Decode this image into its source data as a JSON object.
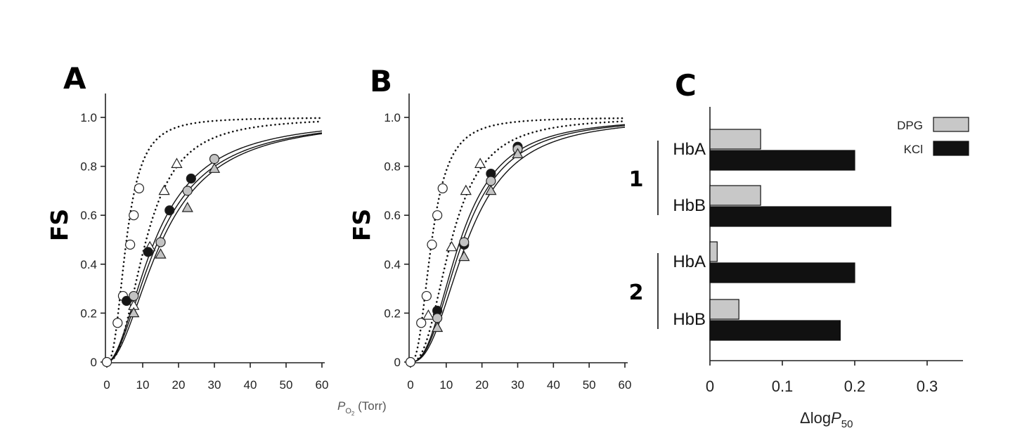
{
  "colors": {
    "open": "#ffffff",
    "grey": "#c3c3c3",
    "black": "#151515",
    "DPG": "#c8c8c8",
    "KCl": "#111111"
  },
  "shared": {
    "xlabel_main": "P",
    "xlabel_sub": "O",
    "xlabel_sub2": "2",
    "xlabel_unit": " (Torr)"
  },
  "chart_data": [
    {
      "type": "line",
      "panel": "A",
      "ylabel": "FS",
      "xlim": [
        0,
        60
      ],
      "ylim": [
        0,
        1.0
      ],
      "xticks": [
        "0",
        "10",
        "20",
        "30",
        "40",
        "50",
        "60"
      ],
      "yticks": [
        "0",
        "0.2",
        "0.4",
        "0.6",
        "0.8",
        "1.0"
      ],
      "curves": [
        {
          "style": "dotted",
          "p50": 5.5,
          "n": 2.5
        },
        {
          "style": "dotted",
          "p50": 11,
          "n": 2.4
        },
        {
          "style": "solid",
          "p50": 13.5,
          "n": 1.9
        },
        {
          "style": "solid",
          "p50": 14.5,
          "n": 1.9
        },
        {
          "style": "solid",
          "p50": 15.5,
          "n": 1.95
        }
      ],
      "series": [
        {
          "marker": "circle",
          "fill": "open",
          "points": [
            [
              0,
              0
            ],
            [
              3,
              0.16
            ],
            [
              4.5,
              0.27
            ],
            [
              6.5,
              0.48
            ],
            [
              7.5,
              0.6
            ],
            [
              9,
              0.71
            ]
          ]
        },
        {
          "marker": "triangle",
          "fill": "open",
          "points": [
            [
              7.5,
              0.23
            ],
            [
              12,
              0.47
            ],
            [
              16,
              0.7
            ],
            [
              19.5,
              0.81
            ]
          ]
        },
        {
          "marker": "circle",
          "fill": "black",
          "points": [
            [
              5.5,
              0.25
            ],
            [
              11.5,
              0.45
            ],
            [
              17.5,
              0.62
            ],
            [
              23.5,
              0.75
            ]
          ]
        },
        {
          "marker": "circle",
          "fill": "grey",
          "points": [
            [
              7.5,
              0.27
            ],
            [
              15,
              0.49
            ],
            [
              22.5,
              0.7
            ],
            [
              30,
              0.83
            ]
          ]
        },
        {
          "marker": "triangle",
          "fill": "grey",
          "points": [
            [
              7.5,
              0.2
            ],
            [
              15,
              0.44
            ],
            [
              22.5,
              0.63
            ],
            [
              30,
              0.79
            ]
          ]
        }
      ]
    },
    {
      "type": "line",
      "panel": "B",
      "ylabel": "FS",
      "xlim": [
        0,
        60
      ],
      "ylim": [
        0,
        1.0
      ],
      "xticks": [
        "0",
        "10",
        "20",
        "30",
        "40",
        "50",
        "60"
      ],
      "yticks": [
        "0",
        "0.2",
        "0.4",
        "0.6",
        "0.8",
        "1.0"
      ],
      "curves": [
        {
          "style": "dotted",
          "p50": 6,
          "n": 2.5
        },
        {
          "style": "dotted",
          "p50": 11.5,
          "n": 2.5
        },
        {
          "style": "solid",
          "p50": 14,
          "n": 2.4
        },
        {
          "style": "solid",
          "p50": 14.8,
          "n": 2.4
        },
        {
          "style": "solid",
          "p50": 16,
          "n": 2.4
        }
      ],
      "series": [
        {
          "marker": "circle",
          "fill": "open",
          "points": [
            [
              0,
              0
            ],
            [
              3,
              0.16
            ],
            [
              4.5,
              0.27
            ],
            [
              6,
              0.48
            ],
            [
              7.5,
              0.6
            ],
            [
              9,
              0.71
            ]
          ]
        },
        {
          "marker": "triangle",
          "fill": "open",
          "points": [
            [
              5,
              0.19
            ],
            [
              11.5,
              0.47
            ],
            [
              15.5,
              0.7
            ],
            [
              19.5,
              0.81
            ]
          ]
        },
        {
          "marker": "circle",
          "fill": "black",
          "points": [
            [
              7.5,
              0.21
            ],
            [
              15,
              0.48
            ],
            [
              22.5,
              0.77
            ],
            [
              30,
              0.88
            ]
          ]
        },
        {
          "marker": "circle",
          "fill": "grey",
          "points": [
            [
              7.5,
              0.18
            ],
            [
              15,
              0.49
            ],
            [
              22.5,
              0.74
            ],
            [
              30,
              0.87
            ]
          ]
        },
        {
          "marker": "triangle",
          "fill": "grey",
          "points": [
            [
              7.5,
              0.14
            ],
            [
              15,
              0.43
            ],
            [
              22.5,
              0.7
            ],
            [
              30,
              0.85
            ]
          ]
        }
      ]
    },
    {
      "type": "bar",
      "panel": "C",
      "orientation": "horizontal",
      "xlabel": "Δlog",
      "xlabel_italic": "P",
      "xlabel_sub": "50",
      "xlim": [
        0,
        0.35
      ],
      "xticks": [
        "0",
        "0.1",
        "0.2",
        "0.3"
      ],
      "legend": {
        "placement": "top-right",
        "entries": [
          "DPG",
          "KCl"
        ]
      },
      "groups": [
        {
          "label": "1",
          "categories": [
            {
              "label": "HbA",
              "DPG": 0.07,
              "KCl": 0.2
            },
            {
              "label": "HbB",
              "DPG": 0.07,
              "KCl": 0.25
            }
          ]
        },
        {
          "label": "2",
          "categories": [
            {
              "label": "HbA",
              "DPG": 0.01,
              "KCl": 0.2
            },
            {
              "label": "HbB",
              "DPG": 0.04,
              "KCl": 0.18
            }
          ]
        }
      ]
    }
  ]
}
